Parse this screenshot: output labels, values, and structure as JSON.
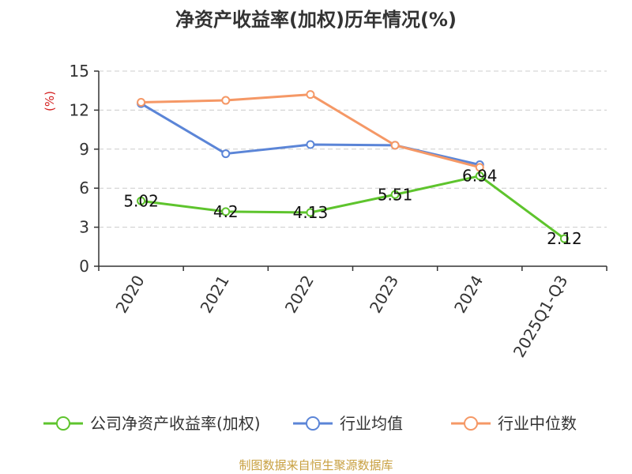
{
  "chart_data": {
    "type": "line",
    "title": "净资产收益率(加权)历年情况(%)",
    "ylabel": "(%)",
    "xlabel": "",
    "ylim": [
      0,
      15
    ],
    "yticks": [
      0,
      3,
      6,
      9,
      12,
      15
    ],
    "grid": true,
    "legend_position": "bottom",
    "categories": [
      "2020",
      "2021",
      "2022",
      "2023",
      "2024",
      "2025Q1-Q3"
    ],
    "series": [
      {
        "name": "公司净资产收益率(加权)",
        "color": "#5ec42d",
        "values": [
          5.02,
          4.2,
          4.13,
          5.51,
          6.94,
          2.12
        ],
        "labels": [
          "5.02",
          "4.2",
          "4.13",
          "5.51",
          "6.94",
          "2.12"
        ]
      },
      {
        "name": "行业均值",
        "color": "#5b85d7",
        "values": [
          12.5,
          8.65,
          9.35,
          9.3,
          7.8,
          null
        ]
      },
      {
        "name": "行业中位数",
        "color": "#f59866",
        "values": [
          12.6,
          12.75,
          13.2,
          9.3,
          7.6,
          null
        ]
      }
    ]
  },
  "footer": {
    "source": "制图数据来自恒生聚源数据库"
  },
  "colors": {
    "axis": "#333333",
    "grid": "#cccccc",
    "ylabel": "#d42020",
    "source": "#c8a040"
  }
}
